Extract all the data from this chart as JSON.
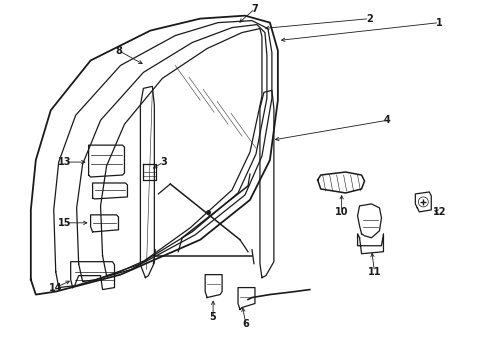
{
  "background_color": "#ffffff",
  "line_color": "#1a1a1a",
  "figsize": [
    4.9,
    3.6
  ],
  "dpi": 100,
  "lw_main": 0.9,
  "lw_thin": 0.55,
  "label_fontsize": 7.0
}
